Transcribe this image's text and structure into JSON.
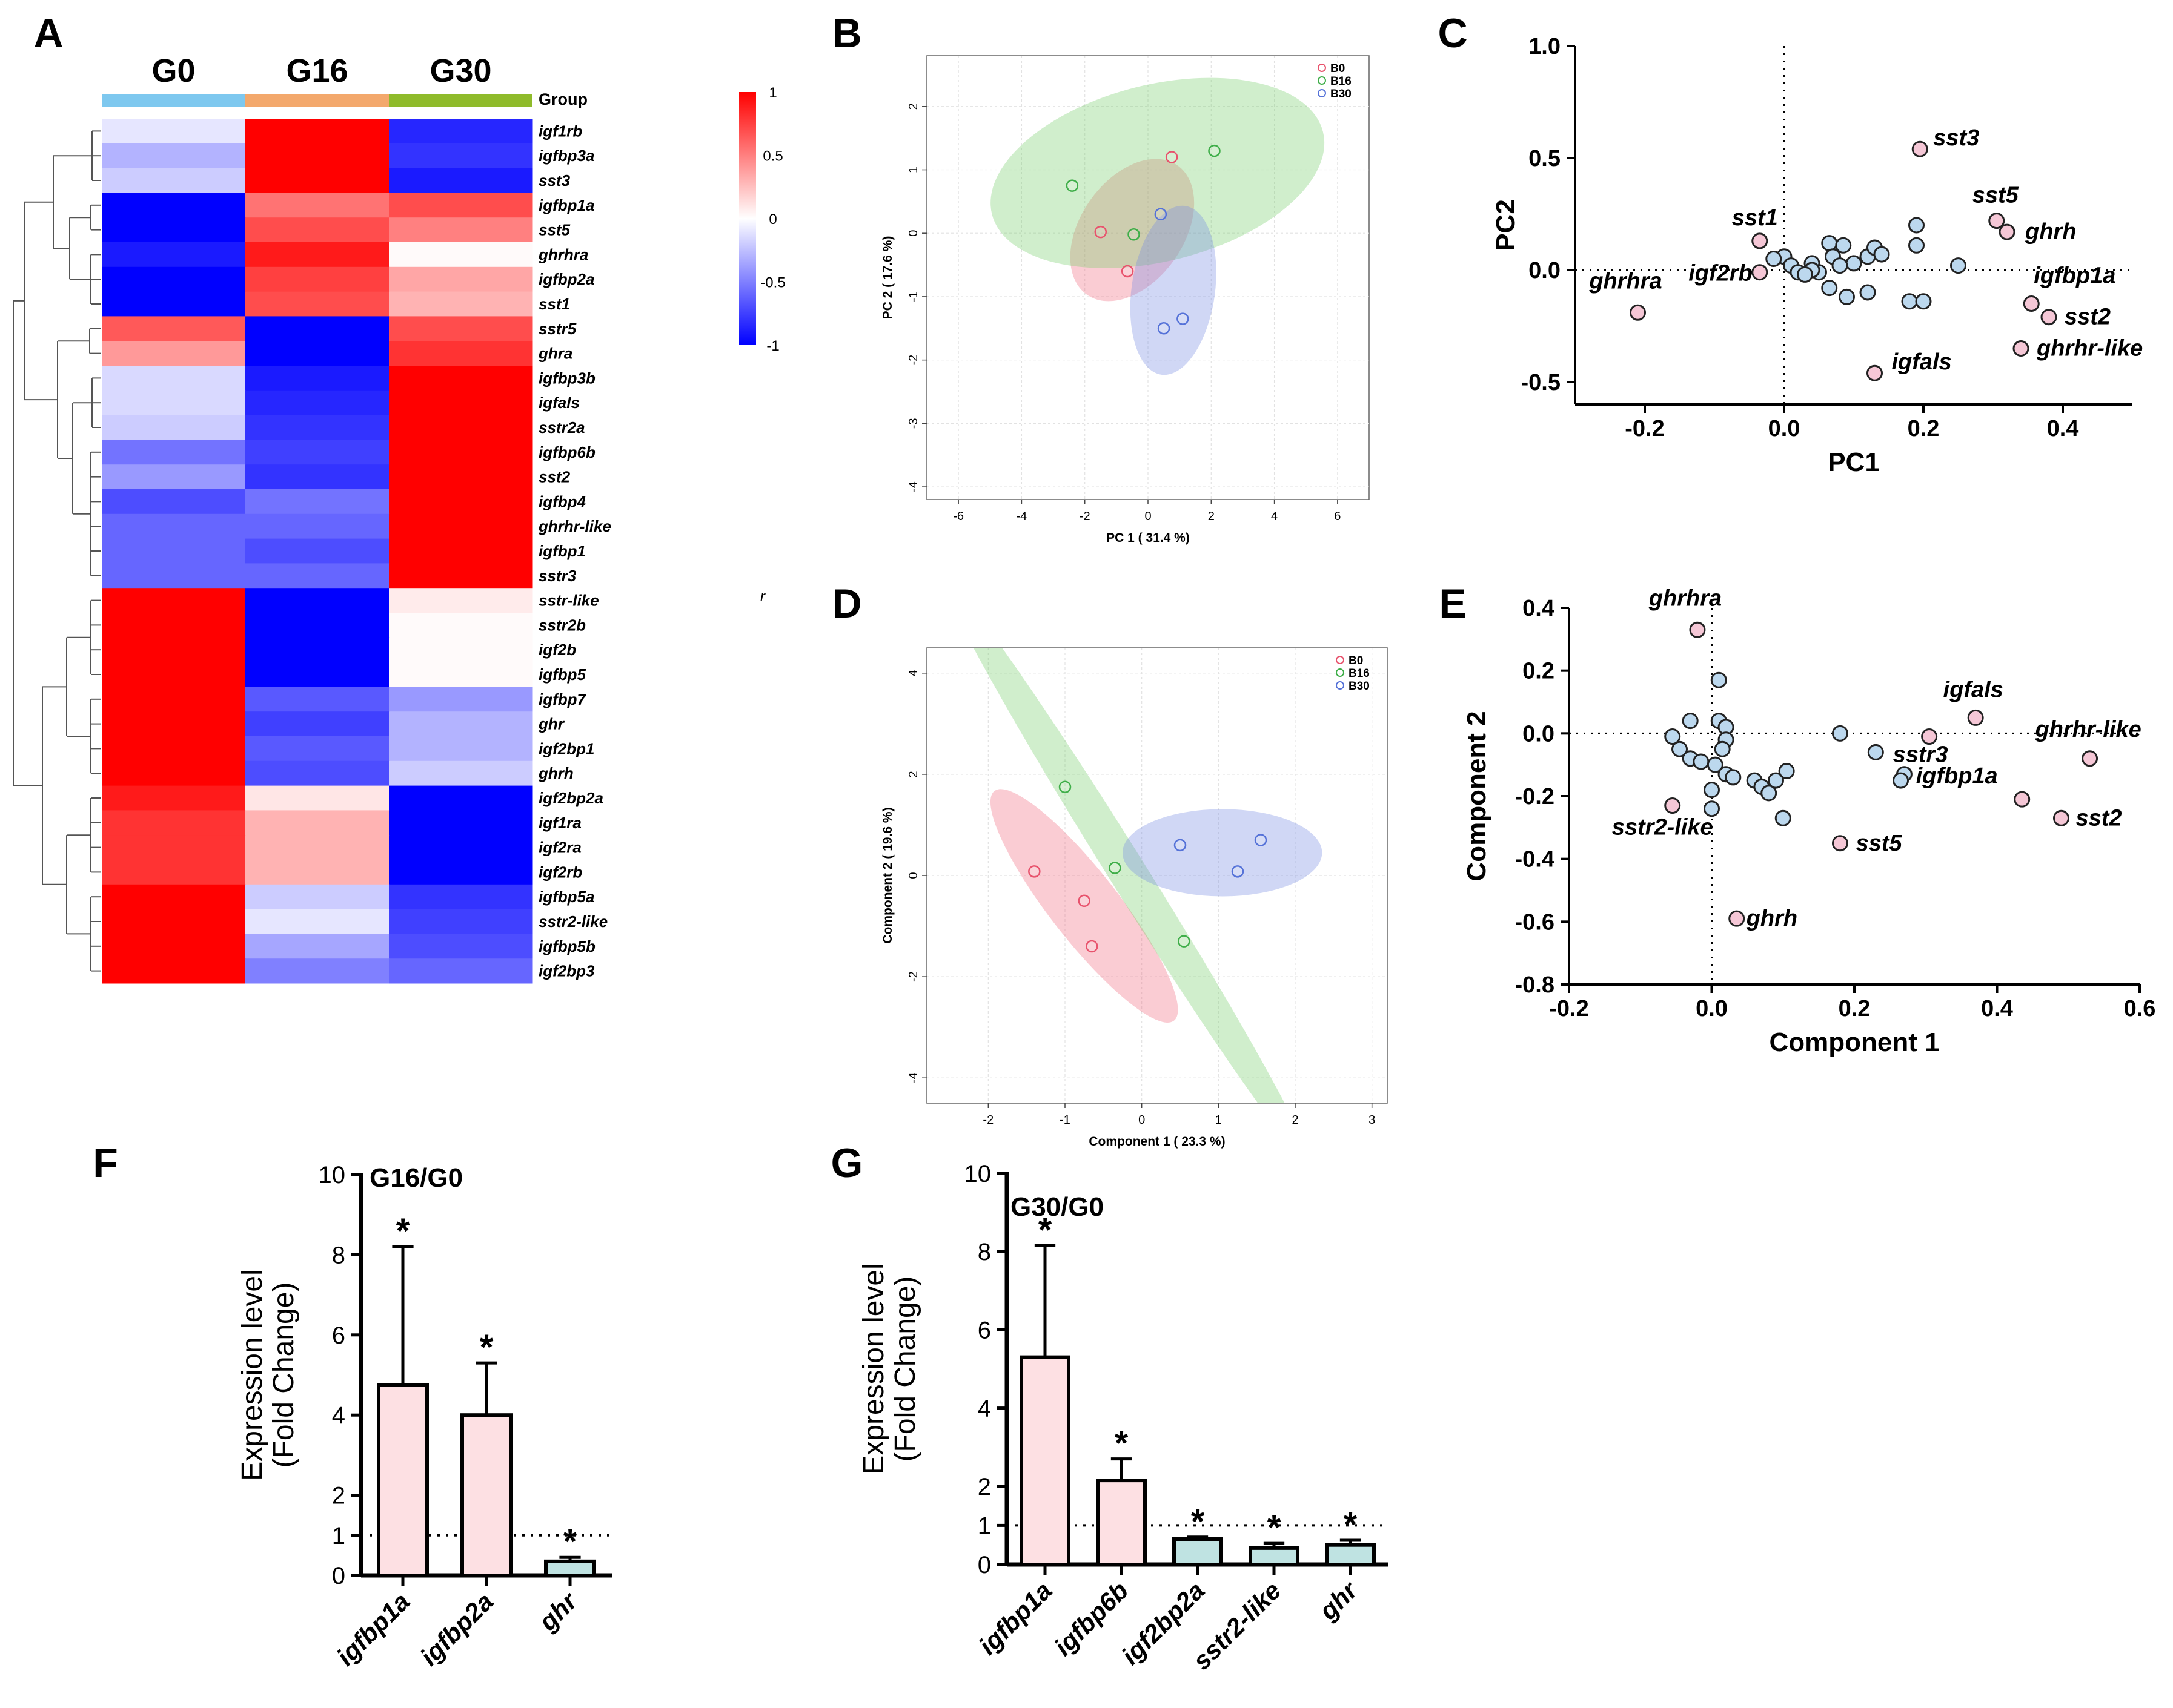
{
  "figure_title": "",
  "chart_data": [
    {
      "panel": "A",
      "type": "heatmap",
      "columns": [
        "G0",
        "G16",
        "G30"
      ],
      "group_label": "Group",
      "column_colors": [
        "#7ec8ef",
        "#f3a86c",
        "#8fbb2b"
      ],
      "rows": [
        "igf1rb",
        "igfbp3a",
        "sst3",
        "igfbp1a",
        "sst5",
        "ghrhra",
        "igfbp2a",
        "sst1",
        "sstr5",
        "ghra",
        "igfbp3b",
        "igfals",
        "sstr2a",
        "igfbp6b",
        "sst2",
        "igfbp4",
        "ghrhr-like",
        "igfbp1",
        "sstr3",
        "sstr-like",
        "sstr2b",
        "igf2b",
        "igfbp5",
        "igfbp7",
        "ghr",
        "igf2bp1",
        "ghrh",
        "igf2bp2a",
        "igf1ra",
        "igf2ra",
        "igf2rb",
        "igfbp5a",
        "sstr2-like",
        "igfbp5b",
        "igf2bp3"
      ],
      "values": [
        [
          -0.1,
          1,
          -0.85
        ],
        [
          -0.3,
          1,
          -0.8
        ],
        [
          -0.2,
          1,
          -0.9
        ],
        [
          -1,
          0.55,
          0.7
        ],
        [
          -1,
          0.7,
          0.5
        ],
        [
          -0.9,
          0.9,
          0.02
        ],
        [
          -1,
          0.75,
          0.35
        ],
        [
          -1,
          0.7,
          0.3
        ],
        [
          0.65,
          -1,
          0.7
        ],
        [
          0.4,
          -1,
          0.8
        ],
        [
          -0.15,
          -0.9,
          1
        ],
        [
          -0.15,
          -0.85,
          1
        ],
        [
          -0.2,
          -0.8,
          1
        ],
        [
          -0.55,
          -0.75,
          1
        ],
        [
          -0.4,
          -0.8,
          1
        ],
        [
          -0.7,
          -0.55,
          1
        ],
        [
          -0.6,
          -0.6,
          1
        ],
        [
          -0.6,
          -0.7,
          1
        ],
        [
          -0.6,
          -0.6,
          1
        ],
        [
          1,
          -1,
          0.08
        ],
        [
          1,
          -1,
          0.02
        ],
        [
          1,
          -1,
          0.02
        ],
        [
          1,
          -1,
          0.02
        ],
        [
          1,
          -0.65,
          -0.4
        ],
        [
          1,
          -0.75,
          -0.3
        ],
        [
          1,
          -0.65,
          -0.3
        ],
        [
          1,
          -0.7,
          -0.2
        ],
        [
          0.9,
          0.1,
          -1
        ],
        [
          0.8,
          0.3,
          -1
        ],
        [
          0.8,
          0.3,
          -1
        ],
        [
          0.8,
          0.3,
          -1
        ],
        [
          1,
          -0.2,
          -0.8
        ],
        [
          1,
          -0.1,
          -0.75
        ],
        [
          1,
          -0.35,
          -0.7
        ],
        [
          1,
          -0.5,
          -0.6
        ]
      ],
      "colorbar_ticks": [
        "1",
        "0.5",
        "0",
        "-0.5",
        "-1"
      ],
      "colorbar_range": [
        -1,
        1
      ],
      "stray_label": "r"
    },
    {
      "panel": "B",
      "type": "scatter",
      "xlabel": "PC 1 ( 31.4 %)",
      "ylabel": "PC 2 ( 17.6 %)",
      "xlim": [
        -7,
        7
      ],
      "ylim": [
        -4.2,
        2.8
      ],
      "xticks": [
        -6,
        -4,
        -2,
        0,
        2,
        4,
        6
      ],
      "yticks": [
        -4,
        -3,
        -2,
        -1,
        0,
        1,
        2
      ],
      "grid": true,
      "legend_position": "top-right",
      "series": [
        {
          "name": "B0",
          "color": "#e8536d",
          "fill": "rgba(240,110,130,0.35)",
          "points": [
            [
              -1.5,
              0.02
            ],
            [
              -0.65,
              -0.6
            ],
            [
              0.75,
              1.2
            ]
          ],
          "ellipse": {
            "cx": -0.5,
            "cy": 0.05,
            "rx": 2.5,
            "ry": 1.05,
            "angle": 55
          }
        },
        {
          "name": "B16",
          "color": "#3fae49",
          "fill": "rgba(120,205,110,0.35)",
          "points": [
            [
              -2.4,
              0.75
            ],
            [
              -0.45,
              -0.02
            ],
            [
              2.1,
              1.3
            ]
          ],
          "ellipse": {
            "cx": 0.3,
            "cy": 0.95,
            "rx": 5.4,
            "ry": 1.8,
            "angle": 14
          }
        },
        {
          "name": "B30",
          "color": "#5572d8",
          "fill": "rgba(120,140,225,0.35)",
          "points": [
            [
              0.4,
              0.3
            ],
            [
              0.5,
              -1.5
            ],
            [
              1.1,
              -1.35
            ]
          ],
          "ellipse": {
            "cx": 0.8,
            "cy": -0.9,
            "rx": 2.7,
            "ry": 0.85,
            "angle": 82
          }
        }
      ]
    },
    {
      "panel": "C",
      "type": "scatter",
      "xlabel": "PC1",
      "ylabel": "PC2",
      "xlim": [
        -0.3,
        0.5
      ],
      "ylim": [
        -0.6,
        1.0
      ],
      "xticks": [
        -0.2,
        0.0,
        0.2,
        0.4
      ],
      "yticks": [
        -0.5,
        0.0,
        0.5,
        1.0
      ],
      "xticklabels": [
        "-0.2",
        "0.0",
        "0.2",
        "0.4"
      ],
      "yticklabels": [
        "-0.5",
        "0.0",
        "0.5",
        "1.0"
      ],
      "highlight_color": "#f5c7d6",
      "other_color": "#bcd8ee",
      "highlighted": [
        {
          "label": "sst3",
          "x": 0.195,
          "y": 0.54
        },
        {
          "label": "sst5",
          "x": 0.305,
          "y": 0.22
        },
        {
          "label": "ghrh",
          "x": 0.32,
          "y": 0.17
        },
        {
          "label": "sst1",
          "x": -0.035,
          "y": 0.13
        },
        {
          "label": "ghrhra",
          "x": -0.21,
          "y": -0.19
        },
        {
          "label": "igf2rb",
          "x": -0.035,
          "y": -0.01
        },
        {
          "label": "igfbp1a",
          "x": 0.355,
          "y": -0.15
        },
        {
          "label": "sst2",
          "x": 0.38,
          "y": -0.21
        },
        {
          "label": "ghrhr-like",
          "x": 0.34,
          "y": -0.35
        },
        {
          "label": "igfals",
          "x": 0.13,
          "y": -0.46
        }
      ],
      "others": [
        [
          0.0,
          0.06
        ],
        [
          -0.015,
          0.05
        ],
        [
          0.01,
          0.02
        ],
        [
          0.02,
          -0.01
        ],
        [
          0.04,
          0.03
        ],
        [
          0.05,
          -0.01
        ],
        [
          0.065,
          0.12
        ],
        [
          0.085,
          0.11
        ],
        [
          0.07,
          0.06
        ],
        [
          0.1,
          0.03
        ],
        [
          0.12,
          0.06
        ],
        [
          0.13,
          0.1
        ],
        [
          0.14,
          0.07
        ],
        [
          0.065,
          -0.08
        ],
        [
          0.09,
          -0.12
        ],
        [
          0.12,
          -0.1
        ],
        [
          0.04,
          0.0
        ],
        [
          0.08,
          0.02
        ],
        [
          0.19,
          0.2
        ],
        [
          0.19,
          0.11
        ],
        [
          0.25,
          0.02
        ],
        [
          0.18,
          -0.14
        ],
        [
          0.2,
          -0.14
        ],
        [
          0.03,
          -0.02
        ]
      ]
    },
    {
      "panel": "D",
      "type": "scatter",
      "xlabel": "Component 1 ( 23.3 %)",
      "ylabel": "Component 2 ( 19.6 %)",
      "xlim": [
        -2.8,
        3.2
      ],
      "ylim": [
        -4.5,
        4.5
      ],
      "xticks": [
        -2,
        -1,
        0,
        1,
        2,
        3
      ],
      "yticks": [
        -4,
        -2,
        0,
        2,
        4
      ],
      "grid": true,
      "legend_position": "top-right",
      "series": [
        {
          "name": "B0",
          "color": "#e8536d",
          "fill": "rgba(240,110,130,0.35)",
          "points": [
            [
              -1.4,
              0.08
            ],
            [
              -0.75,
              -0.5
            ],
            [
              -0.65,
              -1.4
            ]
          ],
          "ellipse": {
            "cx": -0.75,
            "cy": -0.6,
            "rx": 1.9,
            "ry": 0.55,
            "angle": -52
          }
        },
        {
          "name": "B16",
          "color": "#3fae49",
          "fill": "rgba(120,205,110,0.35)",
          "points": [
            [
              -1.0,
              1.75
            ],
            [
              -0.35,
              0.15
            ],
            [
              0.55,
              -1.3
            ]
          ],
          "ellipse": {
            "cx": -0.2,
            "cy": 0.1,
            "rx": 4.5,
            "ry": 0.3,
            "angle": -58
          }
        },
        {
          "name": "B30",
          "color": "#5572d8",
          "fill": "rgba(120,140,225,0.35)",
          "points": [
            [
              0.5,
              0.6
            ],
            [
              1.25,
              0.08
            ],
            [
              1.55,
              0.7
            ]
          ],
          "ellipse": {
            "cx": 1.05,
            "cy": 0.45,
            "rx": 1.3,
            "ry": 0.7,
            "angle": 0
          }
        }
      ]
    },
    {
      "panel": "E",
      "type": "scatter",
      "xlabel": "Component 1",
      "ylabel": "Component 2",
      "xlim": [
        -0.2,
        0.6
      ],
      "ylim": [
        -0.8,
        0.4
      ],
      "xticks": [
        -0.2,
        0.0,
        0.2,
        0.4,
        0.6
      ],
      "yticks": [
        -0.8,
        -0.6,
        -0.4,
        -0.2,
        0.0,
        0.2,
        0.4
      ],
      "xticklabels": [
        "-0.2",
        "0.0",
        "0.2",
        "0.4",
        "0.6"
      ],
      "yticklabels": [
        "-0.8",
        "-0.6",
        "-0.4",
        "-0.2",
        "0.0",
        "0.2",
        "0.4"
      ],
      "highlight_color": "#f5c7d6",
      "other_color": "#bcd8ee",
      "highlighted": [
        {
          "label": "ghrhra",
          "x": -0.02,
          "y": 0.33
        },
        {
          "label": "igfals",
          "x": 0.37,
          "y": 0.05
        },
        {
          "label": "ghrhr-like",
          "x": 0.53,
          "y": -0.08
        },
        {
          "label": "sstr3",
          "x": 0.305,
          "y": -0.01
        },
        {
          "label": "igfbp1a",
          "x": 0.435,
          "y": -0.21
        },
        {
          "label": "sst2",
          "x": 0.49,
          "y": -0.27
        },
        {
          "label": "sstr2-like",
          "x": -0.055,
          "y": -0.23
        },
        {
          "label": "sst5",
          "x": 0.18,
          "y": -0.35
        },
        {
          "label": "ghrh",
          "x": 0.035,
          "y": -0.59
        }
      ],
      "others": [
        [
          -0.03,
          0.04
        ],
        [
          -0.055,
          -0.01
        ],
        [
          -0.045,
          -0.05
        ],
        [
          -0.03,
          -0.08
        ],
        [
          -0.015,
          -0.09
        ],
        [
          0.01,
          0.17
        ],
        [
          0.01,
          0.04
        ],
        [
          0.02,
          0.02
        ],
        [
          0.02,
          -0.02
        ],
        [
          0.015,
          -0.05
        ],
        [
          0.005,
          -0.1
        ],
        [
          0.02,
          -0.13
        ],
        [
          0.0,
          -0.18
        ],
        [
          0.0,
          -0.24
        ],
        [
          0.03,
          -0.14
        ],
        [
          0.06,
          -0.15
        ],
        [
          0.07,
          -0.17
        ],
        [
          0.08,
          -0.19
        ],
        [
          0.09,
          -0.15
        ],
        [
          0.105,
          -0.12
        ],
        [
          0.1,
          -0.27
        ],
        [
          0.18,
          0.0
        ],
        [
          0.23,
          -0.06
        ],
        [
          0.27,
          -0.13
        ],
        [
          0.265,
          -0.15
        ]
      ]
    },
    {
      "panel": "F",
      "type": "bar",
      "title": "G16/G0",
      "ylabel_line1": "Expression level",
      "ylabel_line2": "(Fold Change)",
      "categories": [
        "igfbp1a",
        "igfbp2a",
        "ghr"
      ],
      "values": [
        4.75,
        4.0,
        0.35
      ],
      "errors": [
        3.45,
        1.3,
        0.1
      ],
      "fill_colors": [
        "#fde0e3",
        "#fde0e3",
        "#bfe3e2"
      ],
      "significance": [
        "*",
        "*",
        "*"
      ],
      "ylim": [
        0,
        10
      ],
      "yticks": [
        0,
        1,
        2,
        4,
        6,
        8,
        10
      ],
      "reference_line": 1
    },
    {
      "panel": "G",
      "type": "bar",
      "title": "G30/G0",
      "ylabel_line1": "Expression level",
      "ylabel_line2": "(Fold Change)",
      "categories": [
        "igfbp1a",
        "igfbp6b",
        "igf2bp2a",
        "sstr2-like",
        "ghr"
      ],
      "values": [
        5.3,
        2.15,
        0.65,
        0.42,
        0.5
      ],
      "errors": [
        2.85,
        0.55,
        0.05,
        0.12,
        0.12
      ],
      "fill_colors": [
        "#fde0e3",
        "#fde0e3",
        "#bfe3e2",
        "#bfe3e2",
        "#bfe3e2"
      ],
      "significance": [
        "*",
        "*",
        "*",
        "*",
        "*"
      ],
      "ylim": [
        0,
        10
      ],
      "yticks": [
        0,
        1,
        2,
        4,
        6,
        8,
        10
      ],
      "reference_line": 1
    }
  ]
}
